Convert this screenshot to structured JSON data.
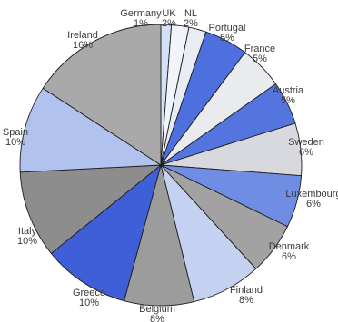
{
  "chart_data": {
    "type": "pie",
    "title": "",
    "labels": [
      "Germany",
      "UK",
      "NL",
      "Portugal",
      "France",
      "Austria",
      "Sweden",
      "Luxembourg",
      "Denmark",
      "Finland",
      "Belgium",
      "Greece",
      "Italy",
      "Spain",
      "Ireland"
    ],
    "percent_labels": [
      "1%",
      "2%",
      "2%",
      "5%",
      "5%",
      "5%",
      "6%",
      "6%",
      "6%",
      "8%",
      "8%",
      "10%",
      "10%",
      "10%",
      "16%"
    ],
    "values": [
      1.2,
      2.0,
      2.0,
      5.0,
      5.0,
      5.0,
      6.0,
      6.0,
      6.0,
      8.0,
      8.0,
      10.0,
      10.0,
      10.0,
      15.8
    ],
    "colors": [
      "#d4e0f3",
      "#f1f4fa",
      "#e8ecf4",
      "#4e6fde",
      "#eaebef",
      "#5474df",
      "#d7d9de",
      "#6f8de3",
      "#a2a2a2",
      "#c5d1f0",
      "#9c9c9c",
      "#3f5fd8",
      "#8d8d8d",
      "#b1c2ee",
      "#a9a9a9"
    ],
    "start_direction": "12 o'clock",
    "direction": "clockwise"
  }
}
